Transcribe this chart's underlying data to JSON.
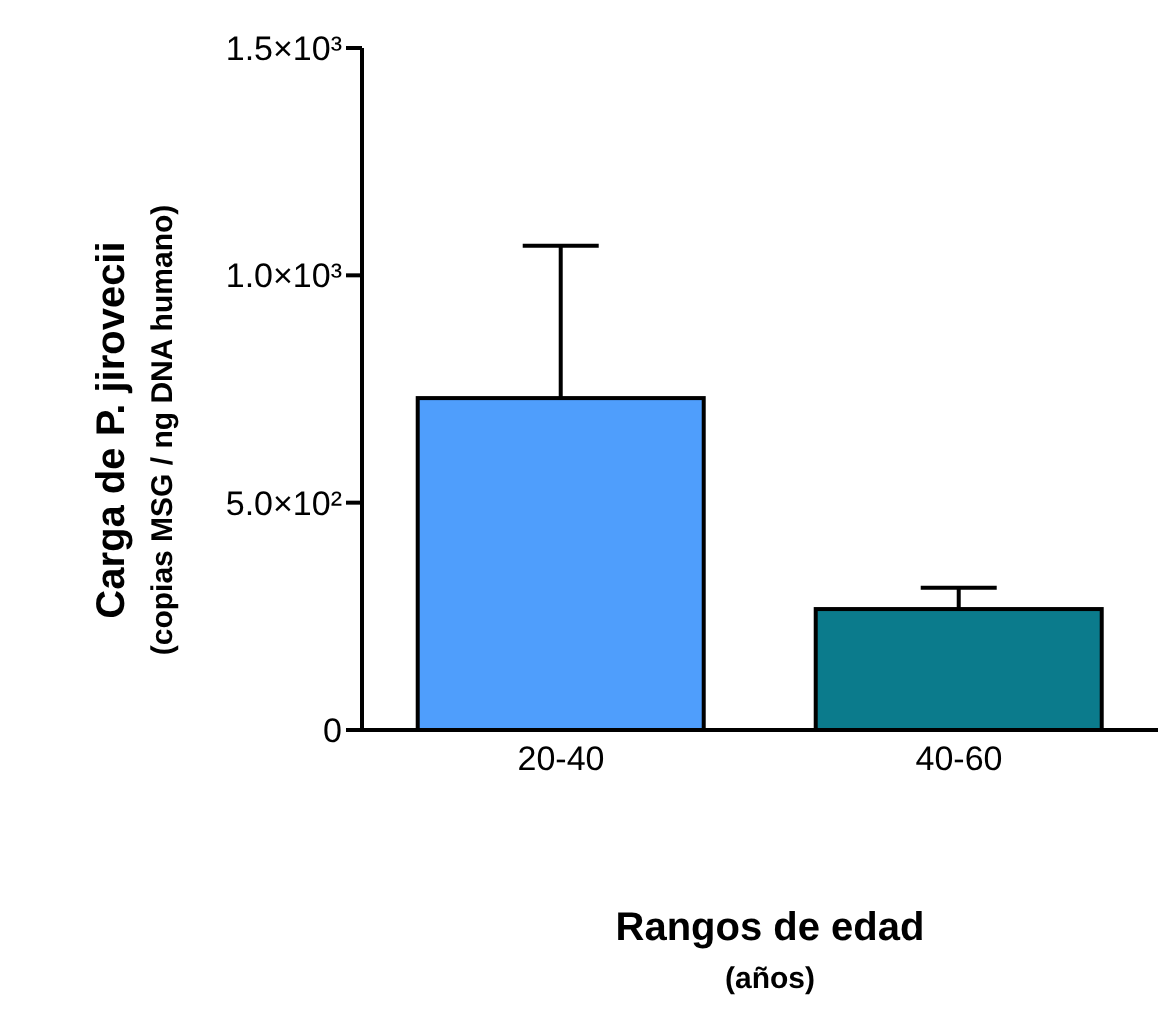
{
  "chart_data": {
    "type": "bar",
    "categories": [
      "20-40",
      "40-60"
    ],
    "values": [
      730,
      266
    ],
    "colors": [
      "#4f9efc",
      "#0b7b8c"
    ],
    "errors": [
      [
        730,
        1065
      ],
      [
        266,
        313
      ]
    ],
    "ylim": [
      0,
      1500
    ],
    "yticks": [
      {
        "value": 0,
        "label": "0"
      },
      {
        "value": 500,
        "label": "5.0×10²"
      },
      {
        "value": 1000,
        "label": "1.0×10³"
      },
      {
        "value": 1500,
        "label": "1.5×10³"
      }
    ],
    "xlabel": "Rangos de edad\n(años)",
    "ylabel": "Carga de P. jirovecii\n(copias MSG / ng DNA humano)",
    "grid": false,
    "legend": false
  }
}
